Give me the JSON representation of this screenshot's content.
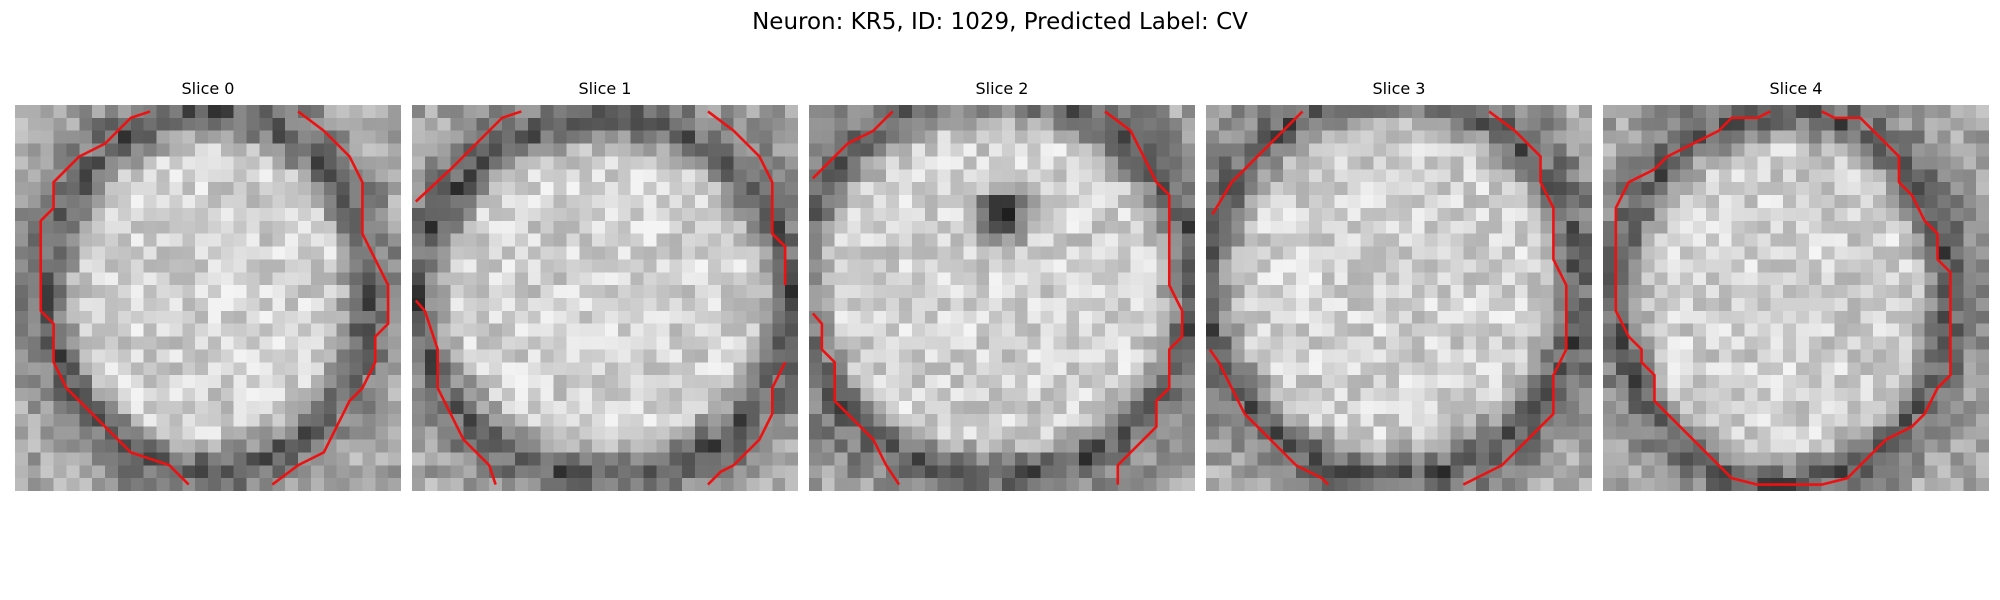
{
  "figure": {
    "title": "Neuron: KR5, ID: 1029, Predicted Label: CV",
    "contour_color": "#ee1111"
  },
  "panels": [
    {
      "title": "Slice 0"
    },
    {
      "title": "Slice 1"
    },
    {
      "title": "Slice 2"
    },
    {
      "title": "Slice 3"
    },
    {
      "title": "Slice 4"
    }
  ]
}
